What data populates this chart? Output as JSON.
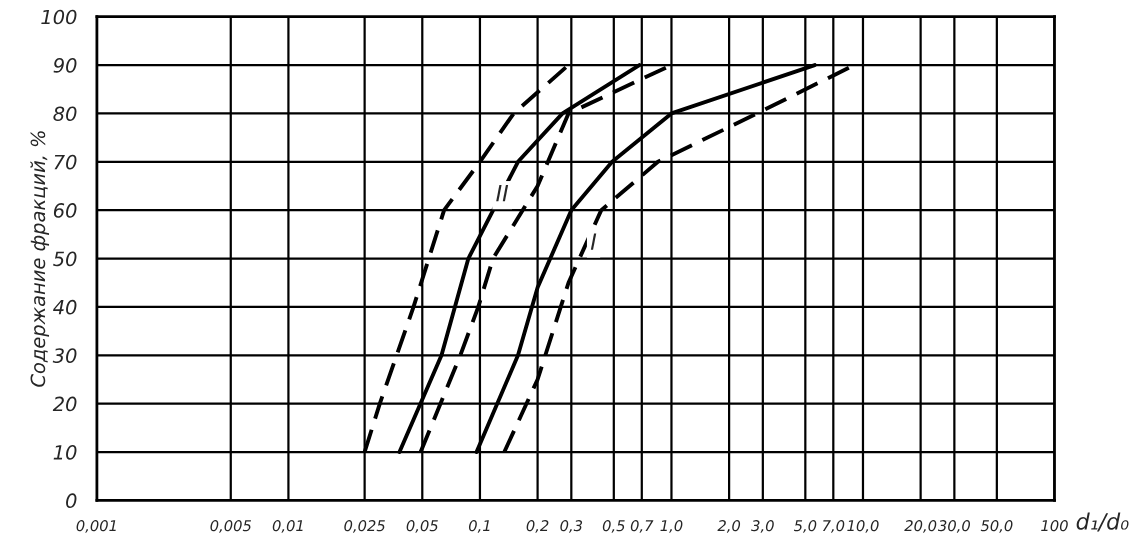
{
  "chart_data": {
    "type": "line",
    "xlabel": "d₁/d₀",
    "ylabel": "Содержание фракций, %",
    "log": "x",
    "grid": true,
    "legend": false,
    "marker": "none",
    "xlim": [
      0.001,
      100
    ],
    "ylim": [
      0,
      100
    ],
    "xticks": [
      {
        "value": 0.001,
        "label": "0,001"
      },
      {
        "value": 0.005,
        "label": "0,005"
      },
      {
        "value": 0.01,
        "label": "0,01"
      },
      {
        "value": 0.025,
        "label": "0,025"
      },
      {
        "value": 0.05,
        "label": "0,05"
      },
      {
        "value": 0.1,
        "label": "0,1"
      },
      {
        "value": 0.2,
        "label": "0,2"
      },
      {
        "value": 0.3,
        "label": "0,3"
      },
      {
        "value": 0.5,
        "label": "0,5"
      },
      {
        "value": 0.7,
        "label": "0,7"
      },
      {
        "value": 1,
        "label": "1,0"
      },
      {
        "value": 2,
        "label": "2,0"
      },
      {
        "value": 3,
        "label": "3,0"
      },
      {
        "value": 5,
        "label": "5,0"
      },
      {
        "value": 7,
        "label": "7,0"
      },
      {
        "value": 10,
        "label": "10,0"
      },
      {
        "value": 20,
        "label": "20,0"
      },
      {
        "value": 30,
        "label": "30,0"
      },
      {
        "value": 50,
        "label": "50,0"
      },
      {
        "value": 100,
        "label": "100"
      }
    ],
    "yticks": [
      0,
      10,
      20,
      30,
      40,
      50,
      60,
      70,
      80,
      90,
      100
    ],
    "series": [
      {
        "color": "#000000",
        "line_style": "dashed",
        "x": [
          0.025,
          0.03,
          0.045,
          0.065,
          0.1,
          0.15,
          0.29
        ],
        "values": [
          10,
          20,
          40,
          60,
          70,
          80,
          90
        ]
      },
      {
        "color": "#000000",
        "line_style": "solid",
        "x": [
          0.038,
          0.063,
          0.087,
          0.158,
          0.27,
          0.68
        ],
        "values": [
          10,
          30,
          50,
          70,
          80,
          90
        ]
      },
      {
        "color": "#000000",
        "line_style": "dashed",
        "x": [
          0.049,
          0.079,
          0.098,
          0.117,
          0.2,
          0.29,
          1.0
        ],
        "values": [
          10,
          30,
          40,
          50,
          65,
          80,
          90
        ]
      },
      {
        "color": "#000000",
        "line_style": "solid",
        "x": [
          0.096,
          0.158,
          0.2,
          0.3,
          0.49,
          1.0,
          5.6
        ],
        "values": [
          10,
          30,
          44,
          60,
          70,
          80,
          90
        ]
      },
      {
        "color": "#000000",
        "line_style": "dashed",
        "x": [
          0.134,
          0.2,
          0.29,
          0.43,
          0.85,
          2.8,
          9.0
        ],
        "values": [
          10,
          25,
          45,
          60,
          70,
          80,
          90
        ]
      }
    ],
    "annotations": [
      {
        "text": "II",
        "x": 0.1,
        "y": 70
      },
      {
        "text": "I",
        "x": 0.3,
        "y": 60
      }
    ]
  }
}
